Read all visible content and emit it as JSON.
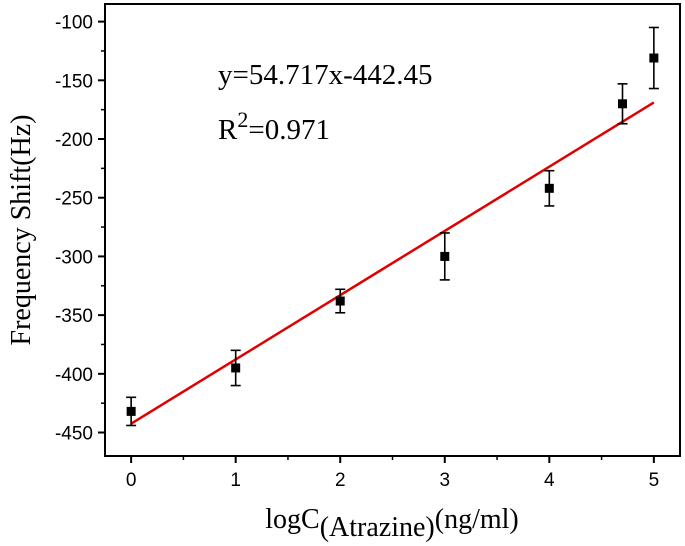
{
  "chart_data": {
    "type": "scatter",
    "xlabel_main": "logC",
    "xlabel_sub": "(Atrazine)",
    "xlabel_unit": "(ng/ml)",
    "ylabel": "Frequency Shift(Hz)",
    "xlim": [
      -0.25,
      5.25
    ],
    "ylim": [
      -470,
      -85
    ],
    "x_ticks": [
      0,
      1,
      2,
      3,
      4,
      5
    ],
    "y_ticks": [
      -100,
      -150,
      -200,
      -250,
      -300,
      -350,
      -400,
      -450
    ],
    "x_tick_labels": [
      "0",
      "1",
      "2",
      "3",
      "4",
      "5"
    ],
    "y_tick_labels": [
      "-100",
      "-150",
      "-200",
      "-250",
      "-300",
      "-350",
      "-400",
      "-450"
    ],
    "grid": false,
    "series": [
      {
        "x": [
          0,
          1,
          2,
          3,
          4,
          4.7,
          5
        ],
        "y": [
          -432,
          -395,
          -338,
          -300,
          -242,
          -170,
          -131
        ],
        "error": [
          12,
          15,
          10,
          20,
          15,
          17,
          26
        ],
        "marker": "square",
        "color": "#000000"
      }
    ],
    "fit": {
      "equation": "y=54.717x-442.45",
      "r2_prefix": "R",
      "r2_sup": "2",
      "r2_value": "=0.971",
      "slope": 54.717,
      "intercept": -442.45,
      "x_range": [
        0,
        5
      ],
      "color": "#e00000"
    }
  }
}
